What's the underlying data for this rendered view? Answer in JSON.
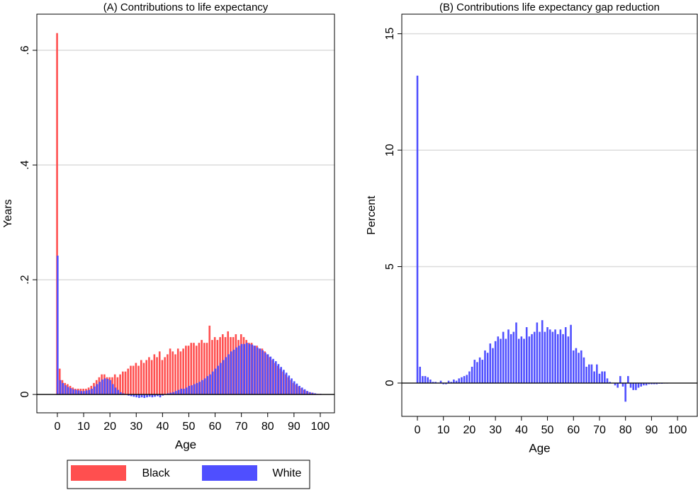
{
  "chart_data": [
    {
      "type": "bar",
      "title": "(A) Contributions to life expectancy",
      "x_label": "Age",
      "y_label": "Years",
      "x": [
        0,
        1,
        2,
        3,
        4,
        5,
        6,
        7,
        8,
        9,
        10,
        11,
        12,
        13,
        14,
        15,
        16,
        17,
        18,
        19,
        20,
        21,
        22,
        23,
        24,
        25,
        26,
        27,
        28,
        29,
        30,
        31,
        32,
        33,
        34,
        35,
        36,
        37,
        38,
        39,
        40,
        41,
        42,
        43,
        44,
        45,
        46,
        47,
        48,
        49,
        50,
        51,
        52,
        53,
        54,
        55,
        56,
        57,
        58,
        59,
        60,
        61,
        62,
        63,
        64,
        65,
        66,
        67,
        68,
        69,
        70,
        71,
        72,
        73,
        74,
        75,
        76,
        77,
        78,
        79,
        80,
        81,
        82,
        83,
        84,
        85,
        86,
        87,
        88,
        89,
        90,
        91,
        92,
        93,
        94,
        95,
        96,
        97,
        98,
        99,
        100
      ],
      "series": [
        {
          "name": "Black",
          "color": "#ff4f4f",
          "values": [
            0.63,
            0.045,
            0.025,
            0.02,
            0.018,
            0.015,
            0.012,
            0.01,
            0.01,
            0.01,
            0.01,
            0.01,
            0.012,
            0.015,
            0.02,
            0.025,
            0.03,
            0.035,
            0.035,
            0.03,
            0.03,
            0.03,
            0.035,
            0.03,
            0.035,
            0.04,
            0.04,
            0.045,
            0.05,
            0.05,
            0.055,
            0.05,
            0.06,
            0.055,
            0.06,
            0.065,
            0.06,
            0.07,
            0.065,
            0.075,
            0.06,
            0.065,
            0.07,
            0.08,
            0.075,
            0.07,
            0.08,
            0.075,
            0.08,
            0.085,
            0.085,
            0.09,
            0.09,
            0.085,
            0.09,
            0.095,
            0.09,
            0.09,
            0.12,
            0.095,
            0.1,
            0.095,
            0.1,
            0.105,
            0.1,
            0.11,
            0.1,
            0.1,
            0.105,
            0.095,
            0.105,
            0.1,
            0.095,
            0.09,
            0.09,
            0.085,
            0.085,
            0.08,
            0.08,
            0.075,
            0.07,
            0.065,
            0.06,
            0.055,
            0.05,
            0.045,
            0.04,
            0.035,
            0.03,
            0.025,
            0.02,
            0.017,
            0.014,
            0.011,
            0.008,
            0.006,
            0.004,
            0.003,
            0.002,
            0.001,
            0.001
          ]
        },
        {
          "name": "White",
          "color": "#4f4fff",
          "values": [
            0.242,
            0.025,
            0.02,
            0.016,
            0.013,
            0.011,
            0.009,
            0.008,
            0.007,
            0.006,
            0.006,
            0.007,
            0.008,
            0.01,
            0.014,
            0.018,
            0.022,
            0.026,
            0.028,
            0.027,
            0.025,
            0.018,
            0.012,
            0.008,
            0.004,
            0.002,
            0,
            -0.002,
            -0.003,
            -0.004,
            -0.005,
            -0.006,
            -0.005,
            -0.006,
            -0.005,
            -0.004,
            -0.005,
            -0.004,
            -0.003,
            -0.005,
            -0.002,
            0,
            0.002,
            0.003,
            0.004,
            0.006,
            0.008,
            0.01,
            0.01,
            0.012,
            0.015,
            0.016,
            0.018,
            0.02,
            0.022,
            0.025,
            0.028,
            0.032,
            0.035,
            0.04,
            0.045,
            0.05,
            0.055,
            0.06,
            0.065,
            0.07,
            0.075,
            0.078,
            0.082,
            0.085,
            0.088,
            0.088,
            0.09,
            0.088,
            0.087,
            0.085,
            0.082,
            0.08,
            0.077,
            0.073,
            0.07,
            0.066,
            0.062,
            0.058,
            0.053,
            0.048,
            0.043,
            0.038,
            0.033,
            0.028,
            0.023,
            0.019,
            0.015,
            0.012,
            0.009,
            0.006,
            0.004,
            0.003,
            0.002,
            0.001,
            0.001
          ]
        }
      ],
      "xlim": [
        -7.8,
        105.4
      ],
      "xticks": [
        0,
        10,
        20,
        30,
        40,
        50,
        60,
        70,
        80,
        90,
        100
      ],
      "ylim": [
        -0.032,
        0.663
      ],
      "yticks": [
        0,
        {
          "value": 0.2,
          "label": ".2"
        },
        {
          "value": 0.4,
          "label": ".4"
        },
        {
          "value": 0.6,
          "label": ".6"
        }
      ],
      "grid": true,
      "legend": "bottom"
    },
    {
      "type": "bar",
      "title": "(B) Contributions life expectancy gap reduction",
      "x_label": "Age",
      "y_label": "Percent",
      "x": [
        0,
        1,
        2,
        3,
        4,
        5,
        6,
        7,
        8,
        9,
        10,
        11,
        12,
        13,
        14,
        15,
        16,
        17,
        18,
        19,
        20,
        21,
        22,
        23,
        24,
        25,
        26,
        27,
        28,
        29,
        30,
        31,
        32,
        33,
        34,
        35,
        36,
        37,
        38,
        39,
        40,
        41,
        42,
        43,
        44,
        45,
        46,
        47,
        48,
        49,
        50,
        51,
        52,
        53,
        54,
        55,
        56,
        57,
        58,
        59,
        60,
        61,
        62,
        63,
        64,
        65,
        66,
        67,
        68,
        69,
        70,
        71,
        72,
        73,
        74,
        75,
        76,
        77,
        78,
        79,
        80,
        81,
        82,
        83,
        84,
        85,
        86,
        87,
        88,
        89,
        90,
        91,
        92,
        93,
        94,
        95,
        96,
        97,
        98,
        99,
        100
      ],
      "series": [
        {
          "name": "Percent",
          "color": "#4f4fff",
          "values": [
            13.2,
            0.7,
            0.3,
            0.3,
            0.25,
            0.15,
            0.05,
            0.05,
            0.02,
            0.1,
            -0.05,
            -0.05,
            0.1,
            0.05,
            0.15,
            0.1,
            0.2,
            0.25,
            0.3,
            0.35,
            0.5,
            0.7,
            1.0,
            0.9,
            1.1,
            1.0,
            1.4,
            1.3,
            1.7,
            1.5,
            1.8,
            2.0,
            1.9,
            2.2,
            1.9,
            2.3,
            2.1,
            2.2,
            2.6,
            1.9,
            2.0,
            1.9,
            2.4,
            2.0,
            2.1,
            2.2,
            2.6,
            2.2,
            2.7,
            2.2,
            2.4,
            2.3,
            2.2,
            2.3,
            2.1,
            2.3,
            2.1,
            2.4,
            2.0,
            2.5,
            1.4,
            1.5,
            1.3,
            1.4,
            1.1,
            0.7,
            0.8,
            0.8,
            0.5,
            0.8,
            0.4,
            0.5,
            0.5,
            0.2,
            0.05,
            0,
            -0.1,
            -0.2,
            0.3,
            -0.15,
            -0.8,
            0.3,
            -0.2,
            -0.3,
            -0.3,
            -0.2,
            -0.15,
            -0.1,
            -0.1,
            -0.05,
            -0.05,
            -0.05,
            -0.05,
            -0.03,
            -0.03,
            -0.02,
            -0.02,
            -0.01,
            -0.01,
            0,
            0
          ]
        }
      ],
      "xlim": [
        -6.0,
        107.6
      ],
      "xticks": [
        0,
        10,
        20,
        30,
        40,
        50,
        60,
        70,
        80,
        90,
        100
      ],
      "ylim": [
        -1.43,
        15.84
      ],
      "yticks": [
        0,
        5,
        10,
        15
      ],
      "grid": true
    }
  ]
}
